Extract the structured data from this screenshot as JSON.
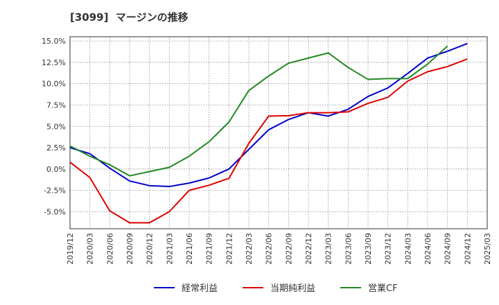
{
  "chart_data": {
    "type": "line",
    "title": "[3099]  マージンの推移",
    "xlabel": "",
    "ylabel": "",
    "x": [
      "2019/12",
      "2020/03",
      "2020/06",
      "2020/09",
      "2020/12",
      "2021/03",
      "2021/06",
      "2021/09",
      "2021/12",
      "2022/03",
      "2022/06",
      "2022/09",
      "2022/12",
      "2023/03",
      "2023/06",
      "2023/09",
      "2023/12",
      "2024/03",
      "2024/06",
      "2024/09",
      "2024/12",
      "2025/03"
    ],
    "ylim": [
      -7.0,
      15.5
    ],
    "yticks": [
      15.0,
      12.5,
      10.0,
      7.5,
      5.0,
      2.5,
      0.0,
      -2.5,
      -5.0
    ],
    "ytick_labels": [
      "15.0%",
      "12.5%",
      "10.0%",
      "7.5%",
      "5.0%",
      "2.5%",
      "0.0%",
      "-2.5%",
      "-5.0%"
    ],
    "grid": true,
    "legend_position": "bottom",
    "series": [
      {
        "name": "経常利益",
        "color": "#0000cc",
        "values": [
          2.5,
          1.8,
          0.1,
          -1.4,
          -1.95,
          -2.05,
          -1.65,
          -1.05,
          0.0,
          2.3,
          4.6,
          5.8,
          6.6,
          6.2,
          7.0,
          8.5,
          9.5,
          11.2,
          13.0,
          13.8,
          14.7,
          null
        ]
      },
      {
        "name": "当期純利益",
        "color": "#dd0000",
        "values": [
          0.8,
          -1.0,
          -4.9,
          -6.3,
          -6.3,
          -5.0,
          -2.5,
          -1.9,
          -1.1,
          3.0,
          6.2,
          6.25,
          6.6,
          6.6,
          6.7,
          7.7,
          8.4,
          10.3,
          11.4,
          12.0,
          12.9,
          null
        ]
      },
      {
        "name": "営業CF",
        "color": "#228822",
        "values": [
          2.7,
          1.5,
          0.5,
          -0.8,
          -0.3,
          0.2,
          1.5,
          3.2,
          5.5,
          9.2,
          10.9,
          12.4,
          13.0,
          13.6,
          11.9,
          10.5,
          10.6,
          10.6,
          12.3,
          14.4,
          null,
          null
        ]
      }
    ]
  }
}
